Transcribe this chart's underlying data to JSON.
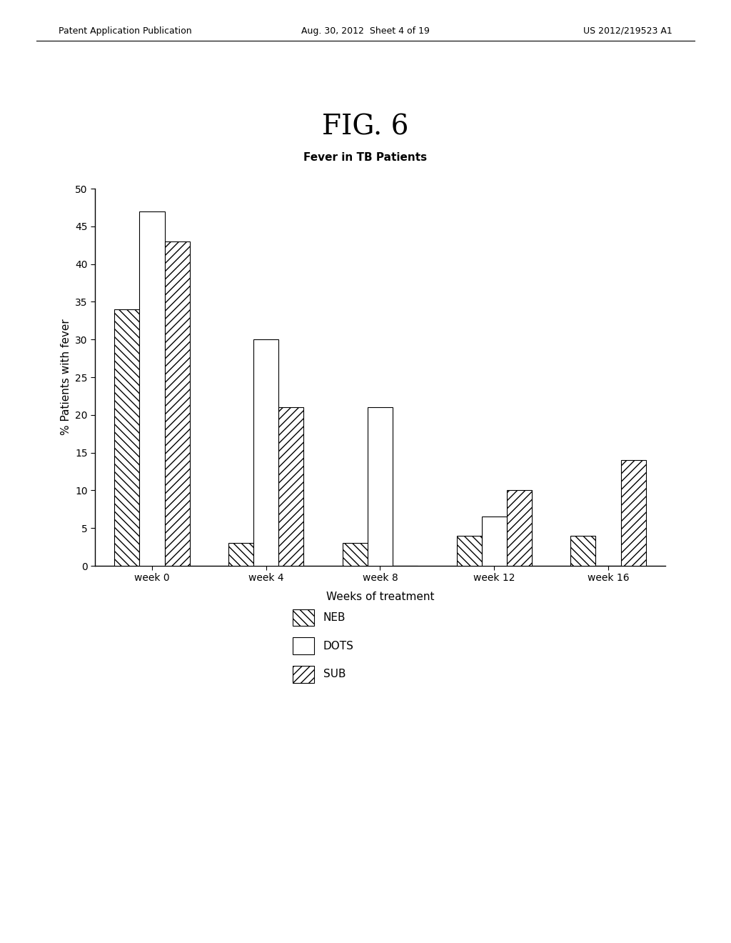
{
  "title": "FIG. 6",
  "subtitle": "Fever in TB Patients",
  "xlabel": "Weeks of treatment",
  "ylabel": "% Patients with fever",
  "categories": [
    "week 0",
    "week 4",
    "week 8",
    "week 12",
    "week 16"
  ],
  "series": {
    "NEB": [
      34,
      3,
      3,
      4,
      4
    ],
    "DOTS": [
      47,
      30,
      21,
      6.5,
      0
    ],
    "SUB": [
      43,
      21,
      0,
      10,
      14
    ]
  },
  "ylim": [
    0,
    50
  ],
  "yticks": [
    0,
    5,
    10,
    15,
    20,
    25,
    30,
    35,
    40,
    45,
    50
  ],
  "background_color": "#ffffff",
  "bar_width": 0.22,
  "header_left": "Patent Application Publication",
  "header_center": "Aug. 30, 2012  Sheet 4 of 19",
  "header_right": "US 2012/219523 A1",
  "title_fontsize": 28,
  "subtitle_fontsize": 11,
  "axis_fontsize": 11,
  "tick_fontsize": 10,
  "legend_fontsize": 11
}
